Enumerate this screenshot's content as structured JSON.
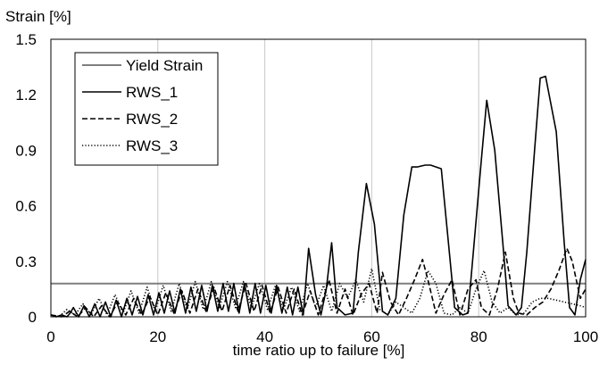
{
  "chart_data": {
    "type": "line",
    "title": "",
    "xlabel": "time ratio up to failure [%]",
    "ylabel": "Strain [%]",
    "xlim": [
      0,
      100
    ],
    "ylim": [
      0,
      1.5
    ],
    "xticks": [
      0,
      20,
      40,
      60,
      80,
      100
    ],
    "xtick_labels": [
      "0",
      "20",
      "40",
      "60",
      "80",
      "100"
    ],
    "yticks": [
      0,
      0.3,
      0.6,
      0.9,
      1.2,
      1.5
    ],
    "ytick_labels": [
      "0",
      "0.3",
      "0.6",
      "0.9",
      "1.2",
      "1.5"
    ],
    "grid": "vertical",
    "legend_position": "top-left",
    "series": [
      {
        "name": "Yield Strain",
        "style": "solid",
        "color": "#7f7f7f",
        "x": [
          0,
          100
        ],
        "y": [
          0.18,
          0.18
        ]
      },
      {
        "name": "RWS_1",
        "style": "solid",
        "color": "#000000",
        "x": [
          0,
          1,
          2,
          3,
          3.6,
          4.2,
          5.2,
          6.2,
          7.2,
          8.2,
          9.2,
          10.2,
          11.2,
          12.2,
          13.2,
          14.2,
          15.2,
          16.2,
          17.2,
          18.2,
          19.2,
          20.2,
          21.2,
          22.2,
          23.2,
          24.2,
          25.2,
          26.2,
          27.2,
          28.2,
          29.2,
          30.2,
          31.2,
          32.2,
          33.2,
          34.2,
          35.2,
          36.2,
          37.2,
          38.2,
          39.2,
          40.2,
          41.2,
          42.2,
          43.2,
          44.2,
          45.2,
          46.2,
          47.2,
          48.2,
          49.5,
          50.5,
          51.5,
          52.5,
          53.5,
          55,
          56.5,
          57.5,
          59,
          60.5,
          62,
          63,
          64.5,
          66,
          67.5,
          68.5,
          70,
          71,
          73,
          74.5,
          75.5,
          77,
          78,
          79,
          80.5,
          81.5,
          83,
          84.5,
          85.5,
          87,
          88,
          89,
          90.5,
          91.5,
          92.5,
          93.5,
          94.5,
          96,
          97,
          98,
          99,
          100
        ],
        "y": [
          0.01,
          0.0,
          0.01,
          0.0,
          0.02,
          0.05,
          0.0,
          0.06,
          0.0,
          0.07,
          0.0,
          0.08,
          0.0,
          0.09,
          0.0,
          0.1,
          0.01,
          0.11,
          0.01,
          0.12,
          0.01,
          0.13,
          0.02,
          0.14,
          0.02,
          0.15,
          0.02,
          0.16,
          0.03,
          0.17,
          0.03,
          0.17,
          0.03,
          0.18,
          0.03,
          0.18,
          0.02,
          0.18,
          0.02,
          0.18,
          0.02,
          0.17,
          0.02,
          0.17,
          0.02,
          0.16,
          0.01,
          0.16,
          0.01,
          0.37,
          0.12,
          0.01,
          0.15,
          0.4,
          0.05,
          0.01,
          0.02,
          0.35,
          0.72,
          0.5,
          0.03,
          0.01,
          0.1,
          0.55,
          0.81,
          0.81,
          0.82,
          0.82,
          0.8,
          0.35,
          0.05,
          0.01,
          0.02,
          0.35,
          0.85,
          1.17,
          0.9,
          0.4,
          0.06,
          0.01,
          0.05,
          0.35,
          0.92,
          1.29,
          1.3,
          1.15,
          1.0,
          0.4,
          0.05,
          0.01,
          0.2,
          0.31
        ]
      },
      {
        "name": "RWS_2",
        "style": "dashed",
        "color": "#000000",
        "x": [
          0,
          2,
          3.5,
          5,
          6.5,
          8,
          9.5,
          11,
          12.5,
          14,
          15.5,
          17,
          18.5,
          20,
          21.5,
          23,
          24.5,
          26,
          27.5,
          29,
          30.5,
          32,
          33.5,
          35,
          36.5,
          38,
          39.5,
          41,
          42.5,
          44,
          45.5,
          47,
          48.5,
          50,
          52,
          53.5,
          55,
          56.5,
          58,
          59.5,
          61,
          62,
          63.5,
          65,
          66.5,
          68,
          69.5,
          70.5,
          72,
          73.5,
          75,
          76.5,
          78,
          79.5,
          80.5,
          82,
          83.5,
          85,
          86.5,
          87.5,
          89,
          90.5,
          92,
          93.5,
          95,
          96.5,
          97.5,
          99,
          100
        ],
        "y": [
          0.01,
          0.0,
          0.03,
          0.0,
          0.05,
          0.0,
          0.06,
          0.0,
          0.08,
          0.01,
          0.1,
          0.01,
          0.11,
          0.01,
          0.13,
          0.02,
          0.14,
          0.02,
          0.15,
          0.03,
          0.16,
          0.03,
          0.17,
          0.03,
          0.18,
          0.03,
          0.17,
          0.02,
          0.16,
          0.02,
          0.15,
          0.01,
          0.14,
          0.01,
          0.2,
          0.02,
          0.15,
          0.01,
          0.12,
          0.18,
          0.02,
          0.24,
          0.08,
          0.01,
          0.1,
          0.2,
          0.31,
          0.2,
          0.02,
          0.12,
          0.2,
          0.01,
          0.15,
          0.2,
          0.05,
          0.01,
          0.15,
          0.35,
          0.1,
          0.02,
          0.01,
          0.05,
          0.08,
          0.15,
          0.25,
          0.37,
          0.3,
          0.1,
          0.15
        ]
      },
      {
        "name": "RWS_3",
        "style": "dotted",
        "color": "#000000",
        "x": [
          0,
          1.5,
          3,
          4.5,
          6,
          7.5,
          9,
          10.5,
          12,
          13.5,
          15,
          16.5,
          18,
          19.5,
          21,
          22.5,
          24,
          25.5,
          27,
          28.5,
          30,
          31.5,
          33,
          34.5,
          36,
          37.5,
          39,
          40.5,
          42,
          43.5,
          45,
          46.5,
          48,
          49.5,
          51,
          52.5,
          54,
          55.5,
          57,
          58.5,
          60,
          61.5,
          63,
          64.5,
          66,
          67.5,
          69,
          70.5,
          72,
          73.5,
          75,
          76.5,
          78,
          79.5,
          81,
          82.5,
          84,
          85.5,
          87,
          88.5,
          90,
          91.5,
          93,
          94.5,
          96,
          97.5,
          99,
          100
        ],
        "y": [
          0.01,
          0.0,
          0.04,
          0.01,
          0.07,
          0.01,
          0.1,
          0.01,
          0.12,
          0.02,
          0.14,
          0.02,
          0.16,
          0.03,
          0.17,
          0.03,
          0.18,
          0.04,
          0.19,
          0.04,
          0.19,
          0.05,
          0.19,
          0.05,
          0.19,
          0.05,
          0.18,
          0.04,
          0.17,
          0.04,
          0.16,
          0.03,
          0.18,
          0.05,
          0.17,
          0.03,
          0.18,
          0.1,
          0.2,
          0.08,
          0.26,
          0.04,
          0.01,
          0.08,
          0.05,
          0.02,
          0.1,
          0.25,
          0.18,
          0.02,
          0.01,
          0.05,
          0.02,
          0.15,
          0.25,
          0.08,
          0.02,
          0.05,
          0.01,
          0.02,
          0.08,
          0.1,
          0.1,
          0.09,
          0.08,
          0.07,
          0.06,
          0.05
        ]
      }
    ]
  }
}
